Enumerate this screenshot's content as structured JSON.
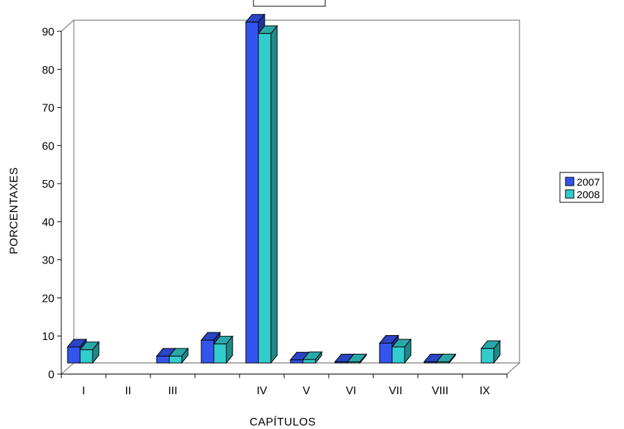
{
  "chart_data": {
    "type": "bar",
    "title": "",
    "xlabel": "CAPÍTULOS",
    "ylabel": "PORCENTAXES",
    "categories": [
      "I",
      "II",
      "III",
      "",
      "IV",
      "V",
      "VI",
      "VII",
      "VIII",
      "IX"
    ],
    "yticks": [
      "0",
      "10",
      "20",
      "30",
      "40",
      "50",
      "60",
      "70",
      "80",
      "90"
    ],
    "ylim": [
      0,
      90
    ],
    "legend_position": "right",
    "series": [
      {
        "name": "2007",
        "color": "#3355ee",
        "top_color": "#2a44c4",
        "side_color": "#1f36a0",
        "values": [
          4.2,
          0,
          1.8,
          6,
          89.5,
          0.8,
          0.3,
          5.2,
          0.3,
          0
        ]
      },
      {
        "name": "2008",
        "color": "#33cccc",
        "top_color": "#2aa8a8",
        "side_color": "#218888",
        "values": [
          3.5,
          0,
          1.8,
          5,
          86.5,
          0.9,
          0.3,
          4.2,
          0.3,
          3.8
        ]
      }
    ]
  }
}
